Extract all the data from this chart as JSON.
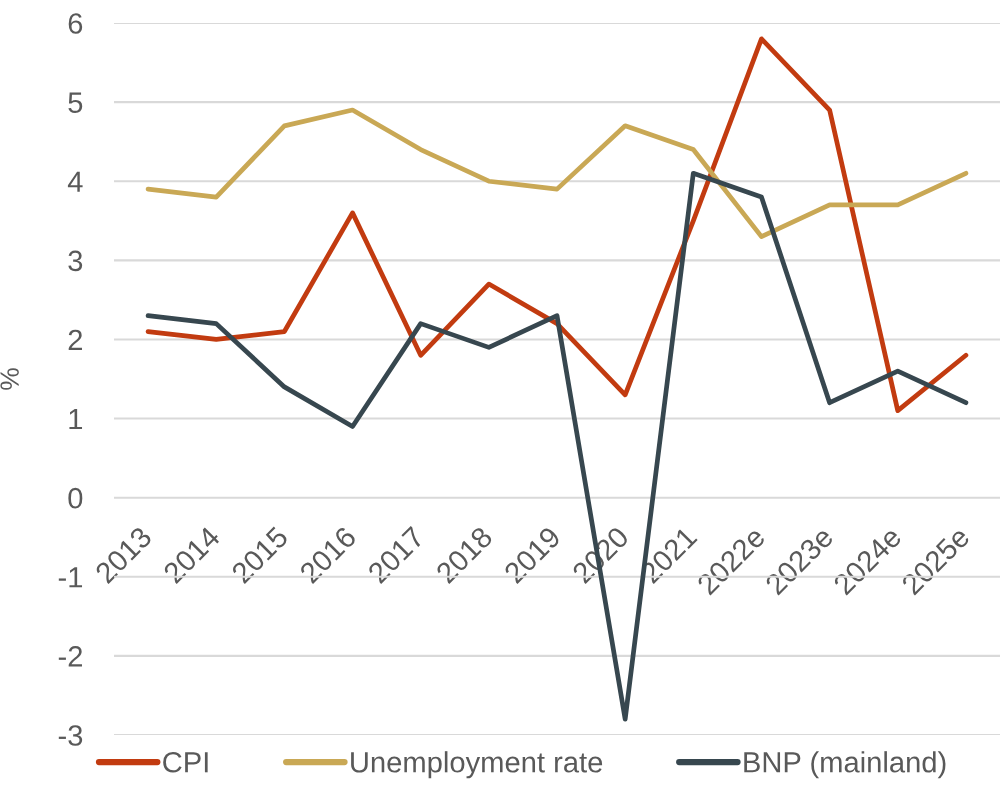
{
  "chart_data": {
    "type": "line",
    "ylabel": "%",
    "categories": [
      "2013",
      "2014",
      "2015",
      "2016",
      "2017",
      "2018",
      "2019",
      "2020",
      "2021",
      "2022e",
      "2023e",
      "2024e",
      "2025e"
    ],
    "series": [
      {
        "name": "CPI",
        "color": "#c23b10",
        "values": [
          2.1,
          2.0,
          2.1,
          3.6,
          1.8,
          2.7,
          2.2,
          1.3,
          3.5,
          5.8,
          4.9,
          1.1,
          1.8
        ]
      },
      {
        "name": "Unemployment rate",
        "color": "#c9a855",
        "values": [
          3.9,
          3.8,
          4.7,
          4.9,
          4.4,
          4.0,
          3.9,
          4.7,
          4.4,
          3.3,
          3.7,
          3.7,
          4.1
        ]
      },
      {
        "name": "BNP (mainland)",
        "color": "#37474f",
        "values": [
          2.3,
          2.2,
          1.4,
          0.9,
          2.2,
          1.9,
          2.3,
          -2.8,
          4.1,
          3.8,
          1.2,
          1.6,
          1.2
        ]
      }
    ],
    "ylim": [
      -3,
      6
    ],
    "yticks": [
      -3,
      -2,
      -1,
      0,
      1,
      2,
      3,
      4,
      5,
      6
    ],
    "grid": "y",
    "legend": "bottom",
    "line_style": "solid"
  }
}
